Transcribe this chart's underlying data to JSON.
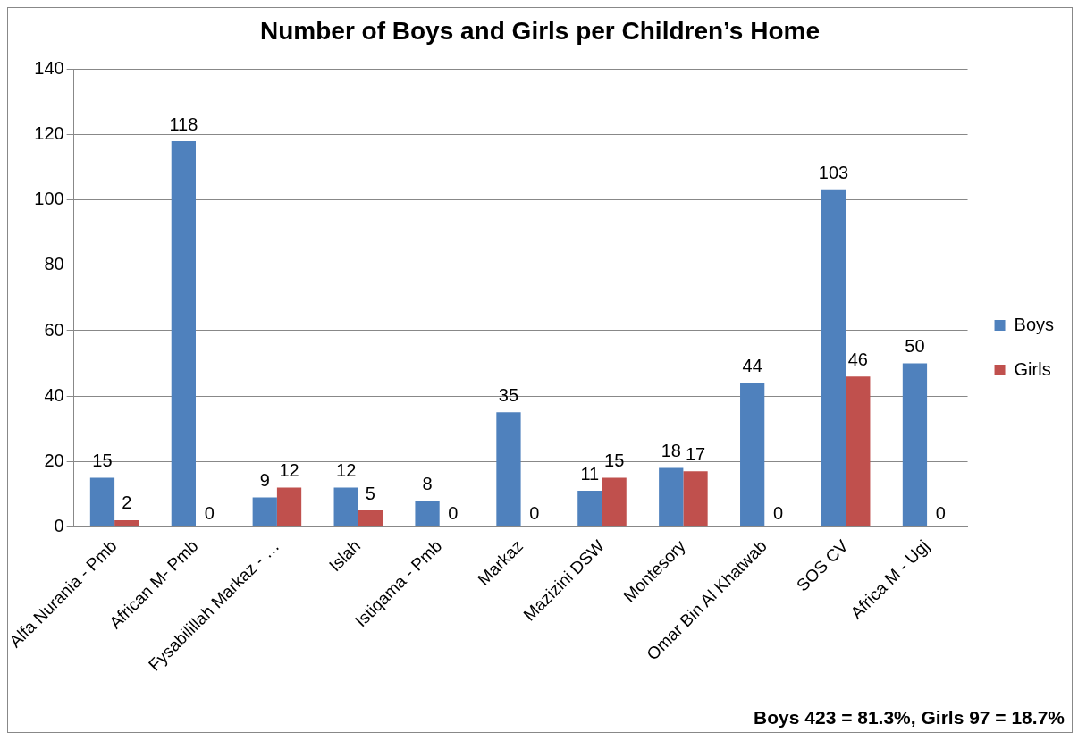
{
  "chart_data": {
    "type": "bar",
    "title": "Number of Boys and Girls per Children’s Home",
    "categories": [
      "Alfa Nurania - Pmb",
      "African M- Pmb",
      "Fysabilillah Markaz - …",
      "Islah",
      "Istiqama - Pmb",
      "Markaz",
      "Mazizini DSW",
      "Montesory",
      "Omar Bin Al Khatwab",
      "SOS CV",
      "Africa M - Ugj"
    ],
    "series": [
      {
        "name": "Boys",
        "color": "#4f81bd",
        "values": [
          15,
          118,
          9,
          12,
          8,
          35,
          11,
          18,
          44,
          103,
          50
        ]
      },
      {
        "name": "Girls",
        "color": "#c0504d",
        "values": [
          2,
          0,
          12,
          5,
          0,
          0,
          15,
          17,
          0,
          46,
          0
        ]
      }
    ],
    "ylim": [
      0,
      140
    ],
    "yticks": [
      0,
      20,
      40,
      60,
      80,
      100,
      120,
      140
    ],
    "grid": "y",
    "legend": "right",
    "data_labels": true,
    "annotations": [
      "Boys 423 = 81.3%, Girls 97 = 18.7%"
    ]
  }
}
